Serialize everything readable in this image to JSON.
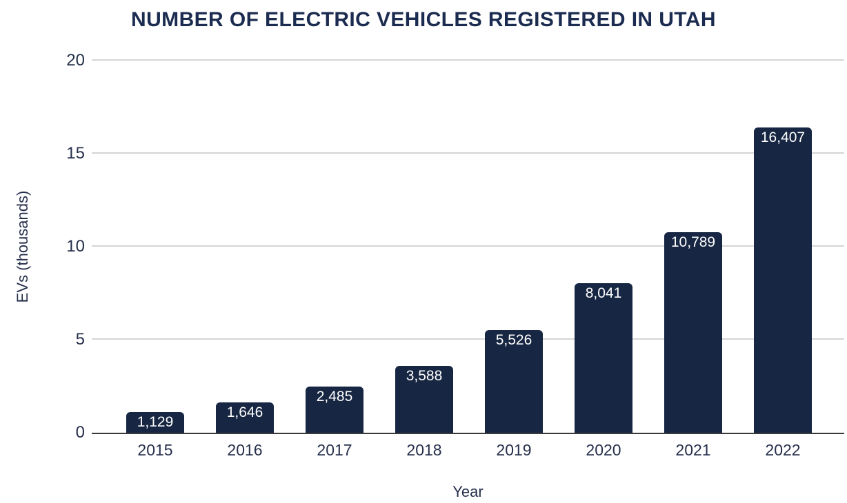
{
  "chart_data": {
    "type": "bar",
    "title": "NUMBER OF ELECTRIC VEHICLES REGISTERED IN UTAH",
    "xlabel": "Year",
    "ylabel": "EVs (thousands)",
    "categories": [
      "2015",
      "2016",
      "2017",
      "2018",
      "2019",
      "2020",
      "2021",
      "2022"
    ],
    "values": [
      1129,
      1646,
      2485,
      3588,
      5526,
      8041,
      10789,
      16407
    ],
    "value_labels": [
      "1,129",
      "1,646",
      "2,485",
      "3,588",
      "5,526",
      "8,041",
      "10,789",
      "16,407"
    ],
    "value_scale_divisor": 1000,
    "ylim": [
      0,
      20
    ],
    "yticks": [
      0,
      5,
      10,
      15,
      20
    ],
    "grid": "horizontal",
    "legend": "none",
    "colors": {
      "background": "#FFFFFF",
      "bar": "#172642",
      "title": "#1B2C50",
      "axis_text": "#26304C",
      "gridline": "#D5D5D5",
      "baseline": "#3A3A3A",
      "value_label": "#FFFFFF"
    }
  }
}
